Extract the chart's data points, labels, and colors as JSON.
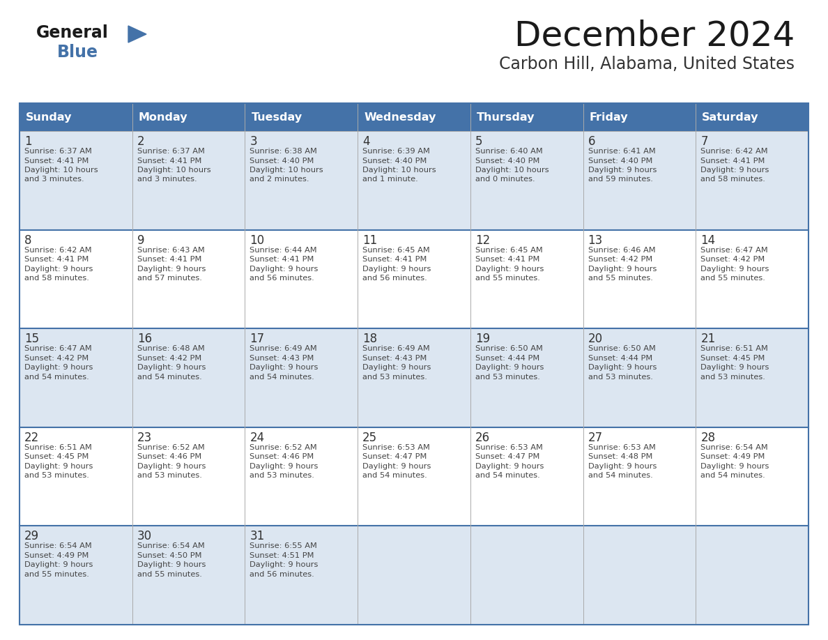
{
  "title": "December 2024",
  "subtitle": "Carbon Hill, Alabama, United States",
  "days_of_week": [
    "Sunday",
    "Monday",
    "Tuesday",
    "Wednesday",
    "Thursday",
    "Friday",
    "Saturday"
  ],
  "header_bg": "#4472a8",
  "header_text": "#ffffff",
  "row_bg_odd": "#dce6f1",
  "row_bg_even": "#ffffff",
  "day_num_color": "#333333",
  "text_color": "#444444",
  "border_color": "#4472a8",
  "title_color": "#1a1a1a",
  "subtitle_color": "#333333",
  "logo_general_color": "#1a1a1a",
  "logo_blue_color": "#4472a8",
  "calendar_data": [
    [
      {
        "day": 1,
        "sunrise": "6:37 AM",
        "sunset": "4:41 PM",
        "daylight_line1": "Daylight: 10 hours",
        "daylight_line2": "and 3 minutes."
      },
      {
        "day": 2,
        "sunrise": "6:37 AM",
        "sunset": "4:41 PM",
        "daylight_line1": "Daylight: 10 hours",
        "daylight_line2": "and 3 minutes."
      },
      {
        "day": 3,
        "sunrise": "6:38 AM",
        "sunset": "4:40 PM",
        "daylight_line1": "Daylight: 10 hours",
        "daylight_line2": "and 2 minutes."
      },
      {
        "day": 4,
        "sunrise": "6:39 AM",
        "sunset": "4:40 PM",
        "daylight_line1": "Daylight: 10 hours",
        "daylight_line2": "and 1 minute."
      },
      {
        "day": 5,
        "sunrise": "6:40 AM",
        "sunset": "4:40 PM",
        "daylight_line1": "Daylight: 10 hours",
        "daylight_line2": "and 0 minutes."
      },
      {
        "day": 6,
        "sunrise": "6:41 AM",
        "sunset": "4:40 PM",
        "daylight_line1": "Daylight: 9 hours",
        "daylight_line2": "and 59 minutes."
      },
      {
        "day": 7,
        "sunrise": "6:42 AM",
        "sunset": "4:41 PM",
        "daylight_line1": "Daylight: 9 hours",
        "daylight_line2": "and 58 minutes."
      }
    ],
    [
      {
        "day": 8,
        "sunrise": "6:42 AM",
        "sunset": "4:41 PM",
        "daylight_line1": "Daylight: 9 hours",
        "daylight_line2": "and 58 minutes."
      },
      {
        "day": 9,
        "sunrise": "6:43 AM",
        "sunset": "4:41 PM",
        "daylight_line1": "Daylight: 9 hours",
        "daylight_line2": "and 57 minutes."
      },
      {
        "day": 10,
        "sunrise": "6:44 AM",
        "sunset": "4:41 PM",
        "daylight_line1": "Daylight: 9 hours",
        "daylight_line2": "and 56 minutes."
      },
      {
        "day": 11,
        "sunrise": "6:45 AM",
        "sunset": "4:41 PM",
        "daylight_line1": "Daylight: 9 hours",
        "daylight_line2": "and 56 minutes."
      },
      {
        "day": 12,
        "sunrise": "6:45 AM",
        "sunset": "4:41 PM",
        "daylight_line1": "Daylight: 9 hours",
        "daylight_line2": "and 55 minutes."
      },
      {
        "day": 13,
        "sunrise": "6:46 AM",
        "sunset": "4:42 PM",
        "daylight_line1": "Daylight: 9 hours",
        "daylight_line2": "and 55 minutes."
      },
      {
        "day": 14,
        "sunrise": "6:47 AM",
        "sunset": "4:42 PM",
        "daylight_line1": "Daylight: 9 hours",
        "daylight_line2": "and 55 minutes."
      }
    ],
    [
      {
        "day": 15,
        "sunrise": "6:47 AM",
        "sunset": "4:42 PM",
        "daylight_line1": "Daylight: 9 hours",
        "daylight_line2": "and 54 minutes."
      },
      {
        "day": 16,
        "sunrise": "6:48 AM",
        "sunset": "4:42 PM",
        "daylight_line1": "Daylight: 9 hours",
        "daylight_line2": "and 54 minutes."
      },
      {
        "day": 17,
        "sunrise": "6:49 AM",
        "sunset": "4:43 PM",
        "daylight_line1": "Daylight: 9 hours",
        "daylight_line2": "and 54 minutes."
      },
      {
        "day": 18,
        "sunrise": "6:49 AM",
        "sunset": "4:43 PM",
        "daylight_line1": "Daylight: 9 hours",
        "daylight_line2": "and 53 minutes."
      },
      {
        "day": 19,
        "sunrise": "6:50 AM",
        "sunset": "4:44 PM",
        "daylight_line1": "Daylight: 9 hours",
        "daylight_line2": "and 53 minutes."
      },
      {
        "day": 20,
        "sunrise": "6:50 AM",
        "sunset": "4:44 PM",
        "daylight_line1": "Daylight: 9 hours",
        "daylight_line2": "and 53 minutes."
      },
      {
        "day": 21,
        "sunrise": "6:51 AM",
        "sunset": "4:45 PM",
        "daylight_line1": "Daylight: 9 hours",
        "daylight_line2": "and 53 minutes."
      }
    ],
    [
      {
        "day": 22,
        "sunrise": "6:51 AM",
        "sunset": "4:45 PM",
        "daylight_line1": "Daylight: 9 hours",
        "daylight_line2": "and 53 minutes."
      },
      {
        "day": 23,
        "sunrise": "6:52 AM",
        "sunset": "4:46 PM",
        "daylight_line1": "Daylight: 9 hours",
        "daylight_line2": "and 53 minutes."
      },
      {
        "day": 24,
        "sunrise": "6:52 AM",
        "sunset": "4:46 PM",
        "daylight_line1": "Daylight: 9 hours",
        "daylight_line2": "and 53 minutes."
      },
      {
        "day": 25,
        "sunrise": "6:53 AM",
        "sunset": "4:47 PM",
        "daylight_line1": "Daylight: 9 hours",
        "daylight_line2": "and 54 minutes."
      },
      {
        "day": 26,
        "sunrise": "6:53 AM",
        "sunset": "4:47 PM",
        "daylight_line1": "Daylight: 9 hours",
        "daylight_line2": "and 54 minutes."
      },
      {
        "day": 27,
        "sunrise": "6:53 AM",
        "sunset": "4:48 PM",
        "daylight_line1": "Daylight: 9 hours",
        "daylight_line2": "and 54 minutes."
      },
      {
        "day": 28,
        "sunrise": "6:54 AM",
        "sunset": "4:49 PM",
        "daylight_line1": "Daylight: 9 hours",
        "daylight_line2": "and 54 minutes."
      }
    ],
    [
      {
        "day": 29,
        "sunrise": "6:54 AM",
        "sunset": "4:49 PM",
        "daylight_line1": "Daylight: 9 hours",
        "daylight_line2": "and 55 minutes."
      },
      {
        "day": 30,
        "sunrise": "6:54 AM",
        "sunset": "4:50 PM",
        "daylight_line1": "Daylight: 9 hours",
        "daylight_line2": "and 55 minutes."
      },
      {
        "day": 31,
        "sunrise": "6:55 AM",
        "sunset": "4:51 PM",
        "daylight_line1": "Daylight: 9 hours",
        "daylight_line2": "and 56 minutes."
      },
      null,
      null,
      null,
      null
    ]
  ]
}
